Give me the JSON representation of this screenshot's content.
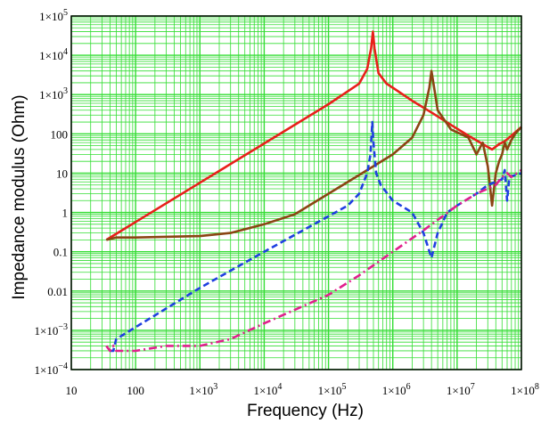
{
  "chart_data": {
    "type": "line",
    "title": "",
    "xlabel": "Frequency (Hz)",
    "ylabel": "Impedance modulus (Ohm)",
    "x_scale": "log",
    "y_scale": "log",
    "xlim": [
      10,
      100000000
    ],
    "ylim": [
      0.0001,
      100000
    ],
    "grid": true,
    "grid_color": "#33dd33",
    "x_ticks": [
      {
        "value": 10,
        "label": "10",
        "base": "",
        "exp": ""
      },
      {
        "value": 100,
        "label": "100",
        "base": "",
        "exp": ""
      },
      {
        "value": 1000,
        "label": "",
        "base": "1×10",
        "exp": "3"
      },
      {
        "value": 10000,
        "label": "",
        "base": "1×10",
        "exp": "4"
      },
      {
        "value": 100000,
        "label": "",
        "base": "1×10",
        "exp": "5"
      },
      {
        "value": 1000000,
        "label": "",
        "base": "1×10",
        "exp": "6"
      },
      {
        "value": 10000000,
        "label": "",
        "base": "1×10",
        "exp": "7"
      },
      {
        "value": 100000000,
        "label": "",
        "base": "1×10",
        "exp": "8"
      }
    ],
    "y_ticks": [
      {
        "value": 0.0001,
        "label": "",
        "base": "1×10",
        "exp": "−4"
      },
      {
        "value": 0.001,
        "label": "",
        "base": "1×10",
        "exp": "−3"
      },
      {
        "value": 0.01,
        "label": "0.01",
        "base": "",
        "exp": ""
      },
      {
        "value": 0.1,
        "label": "0.1",
        "base": "",
        "exp": ""
      },
      {
        "value": 1,
        "label": "1",
        "base": "",
        "exp": ""
      },
      {
        "value": 10,
        "label": "10",
        "base": "",
        "exp": ""
      },
      {
        "value": 100,
        "label": "100",
        "base": "",
        "exp": ""
      },
      {
        "value": 1000,
        "label": "",
        "base": "1×10",
        "exp": "3"
      },
      {
        "value": 10000,
        "label": "",
        "base": "1×10",
        "exp": "4"
      },
      {
        "value": 100000,
        "label": "",
        "base": "1×10",
        "exp": "5"
      }
    ],
    "series": [
      {
        "color": "#e8201a",
        "dash": "solid",
        "points": [
          [
            35,
            0.2
          ],
          [
            100,
            0.57
          ],
          [
            1000,
            5.7
          ],
          [
            10000,
            57
          ],
          [
            100000,
            570
          ],
          [
            300000,
            1900
          ],
          [
            400000,
            4500
          ],
          [
            460000,
            15000
          ],
          [
            490000,
            40000
          ],
          [
            520000,
            15000
          ],
          [
            600000,
            3500
          ],
          [
            800000,
            1900
          ],
          [
            1000000,
            1500
          ],
          [
            2000000,
            700
          ],
          [
            4000000,
            350
          ],
          [
            8000000,
            170
          ],
          [
            15000000,
            90
          ],
          [
            25000000,
            55
          ],
          [
            35000000,
            40
          ],
          [
            45000000,
            55
          ],
          [
            55000000,
            65
          ],
          [
            70000000,
            90
          ],
          [
            100000000,
            150
          ]
        ]
      },
      {
        "color": "#8b4513",
        "dash": "solid",
        "points": [
          [
            35,
            0.2
          ],
          [
            50,
            0.23
          ],
          [
            100,
            0.23
          ],
          [
            1000,
            0.25
          ],
          [
            3000,
            0.3
          ],
          [
            10000,
            0.5
          ],
          [
            30000,
            0.9
          ],
          [
            100000,
            3
          ],
          [
            300000,
            9
          ],
          [
            1000000,
            30
          ],
          [
            2000000,
            80
          ],
          [
            3000000,
            300
          ],
          [
            3700000,
            1500
          ],
          [
            4000000,
            4000
          ],
          [
            4400000,
            1500
          ],
          [
            5000000,
            400
          ],
          [
            8000000,
            130
          ],
          [
            15000000,
            80
          ],
          [
            20000000,
            30
          ],
          [
            25000000,
            60
          ],
          [
            30000000,
            15
          ],
          [
            35000000,
            1.5
          ],
          [
            40000000,
            10
          ],
          [
            45000000,
            20
          ],
          [
            50000000,
            30
          ],
          [
            55000000,
            60
          ],
          [
            60000000,
            40
          ],
          [
            70000000,
            70
          ],
          [
            80000000,
            100
          ],
          [
            100000000,
            150
          ]
        ]
      },
      {
        "color": "#1f3fe0",
        "dash": "dash",
        "points": [
          [
            40,
            0.0003
          ],
          [
            45,
            0.0003
          ],
          [
            50,
            0.0006
          ],
          [
            100,
            0.0012
          ],
          [
            1000,
            0.012
          ],
          [
            10000,
            0.1
          ],
          [
            100000,
            0.8
          ],
          [
            200000,
            1.5
          ],
          [
            300000,
            3
          ],
          [
            400000,
            10
          ],
          [
            450000,
            30
          ],
          [
            480000,
            200
          ],
          [
            500000,
            60
          ],
          [
            550000,
            10
          ],
          [
            650000,
            5
          ],
          [
            1000000,
            2
          ],
          [
            2000000,
            1
          ],
          [
            3000000,
            0.3
          ],
          [
            4000000,
            0.07
          ],
          [
            5000000,
            0.3
          ],
          [
            7000000,
            1
          ],
          [
            10000000,
            1.5
          ],
          [
            20000000,
            3
          ],
          [
            30000000,
            5
          ],
          [
            40000000,
            6
          ],
          [
            50000000,
            7
          ],
          [
            55000000,
            12
          ],
          [
            60000000,
            2
          ],
          [
            65000000,
            8
          ],
          [
            100000000,
            10
          ]
        ]
      },
      {
        "color": "#e0208c",
        "dash": "dashdot",
        "points": [
          [
            35,
            0.0004
          ],
          [
            40,
            0.0003
          ],
          [
            45,
            0.0004
          ],
          [
            50,
            0.0003
          ],
          [
            100,
            0.0003
          ],
          [
            300,
            0.0004
          ],
          [
            1000,
            0.0004
          ],
          [
            3000,
            0.0006
          ],
          [
            10000,
            0.0015
          ],
          [
            100000,
            0.008
          ],
          [
            300000,
            0.025
          ],
          [
            1000000,
            0.1
          ],
          [
            3000000,
            0.35
          ],
          [
            10000000,
            1.5
          ],
          [
            20000000,
            3
          ],
          [
            40000000,
            5
          ],
          [
            50000000,
            8
          ],
          [
            60000000,
            10
          ],
          [
            70000000,
            8
          ],
          [
            100000000,
            12
          ]
        ]
      }
    ]
  }
}
